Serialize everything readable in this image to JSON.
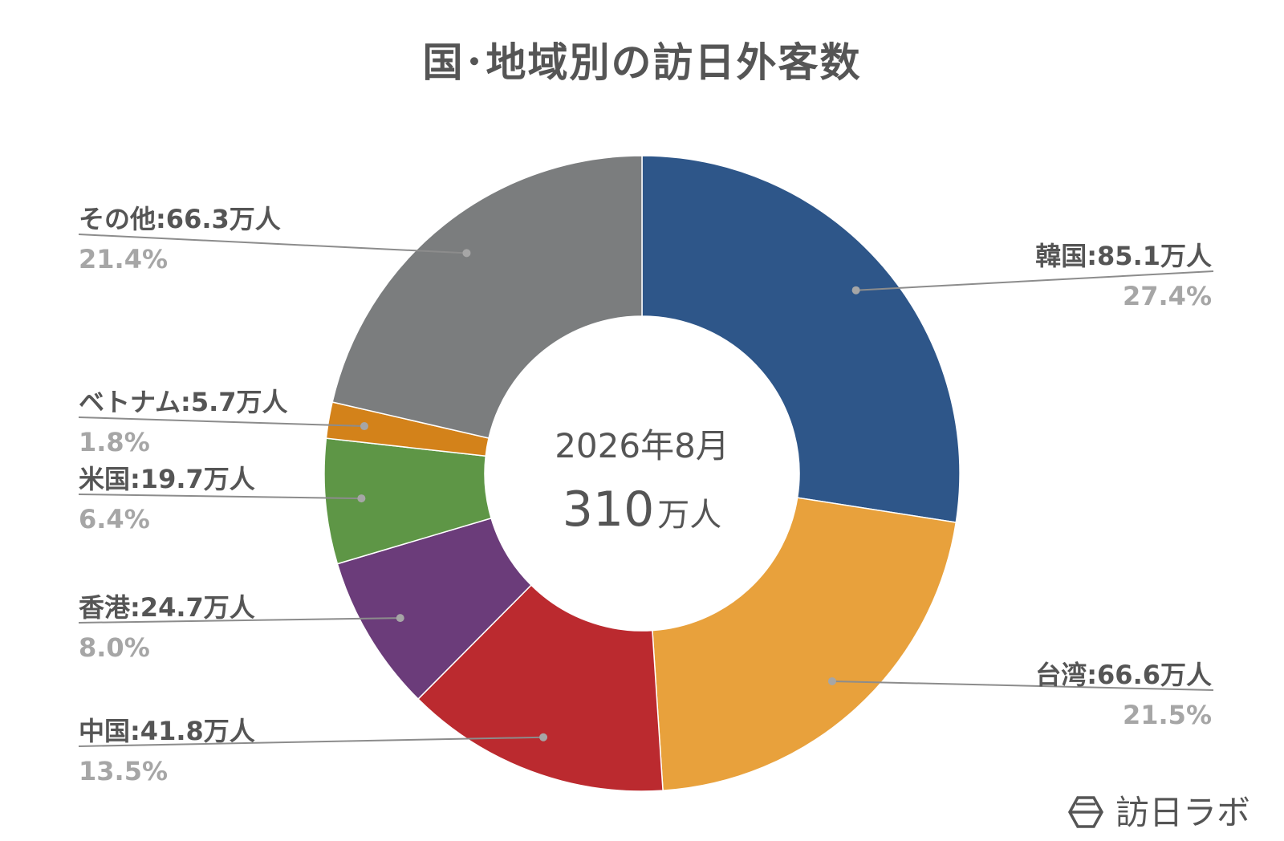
{
  "chart_data": {
    "type": "pie",
    "donut": true,
    "title": "国･地域別の訪日外客数",
    "center": {
      "date": "2026年8月",
      "total_num": "310",
      "total_unit": "万人"
    },
    "slices": [
      {
        "label": "韓国:85.1万人",
        "pct_label": "27.4%",
        "value": 85.1,
        "percent": 27.4,
        "color": "#2e5689"
      },
      {
        "label": "台湾:66.6万人",
        "pct_label": "21.5%",
        "value": 66.6,
        "percent": 21.5,
        "color": "#e8a13c"
      },
      {
        "label": "中国:41.8万人",
        "pct_label": "13.5%",
        "value": 41.8,
        "percent": 13.5,
        "color": "#bb2a2f"
      },
      {
        "label": "香港:24.7万人",
        "pct_label": "8.0%",
        "value": 24.7,
        "percent": 8.0,
        "color": "#6b3c7a"
      },
      {
        "label": "米国:19.7万人",
        "pct_label": "6.4%",
        "value": 19.7,
        "percent": 6.4,
        "color": "#5e9646"
      },
      {
        "label": "ベトナム:5.7万人",
        "pct_label": "1.8%",
        "value": 5.7,
        "percent": 1.8,
        "color": "#d3821a"
      },
      {
        "label": "その他:66.3万人",
        "pct_label": "21.4%",
        "value": 66.3,
        "percent": 21.4,
        "color": "#7b7d7e"
      }
    ],
    "legend": "none"
  },
  "watermark": {
    "text": "訪日ラボ",
    "icon": "hexagon-logo-icon"
  }
}
